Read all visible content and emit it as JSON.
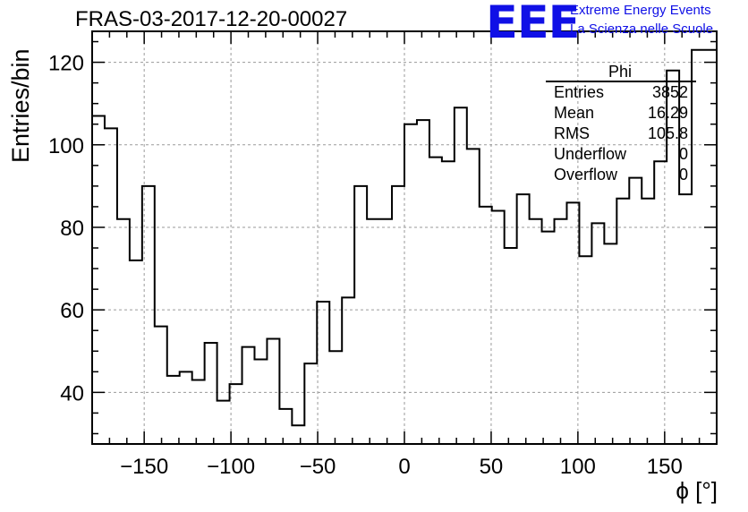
{
  "header": {
    "title": "FRAS-03-2017-12-20-00027"
  },
  "logo": {
    "mark": "EEE",
    "line1": "Extreme Energy Events",
    "line2": "La Scienza nelle Scuole",
    "color": "#1010e6"
  },
  "stats_box": {
    "title": "Phi",
    "rows": [
      {
        "key": "Entries",
        "value": "3852"
      },
      {
        "key": "Mean",
        "value": "16.29"
      },
      {
        "key": "RMS",
        "value": "105.8"
      },
      {
        "key": "Underflow",
        "value": "0"
      },
      {
        "key": "Overflow",
        "value": "0"
      }
    ]
  },
  "chart_data": {
    "type": "histogram",
    "xlabel": "ϕ [°]",
    "ylabel": "Entries/bin",
    "xlim": [
      -180,
      180
    ],
    "ylim": [
      27.5,
      127.5
    ],
    "bin_width": 7.2,
    "bin_start": -180,
    "values": [
      107,
      104,
      82,
      72,
      90,
      56,
      44,
      45,
      43,
      52,
      38,
      42,
      51,
      48,
      53,
      36,
      32,
      47,
      62,
      50,
      63,
      90,
      82,
      82,
      90,
      105,
      106,
      97,
      96,
      109,
      99,
      85,
      84,
      75,
      88,
      82,
      79,
      82,
      86,
      73,
      81,
      76,
      87,
      92,
      87,
      96,
      118,
      88,
      123,
      123
    ],
    "xticks": [
      -150,
      -100,
      -50,
      0,
      50,
      100,
      150
    ],
    "xtick_labels": [
      "−150",
      "−100",
      "−50",
      "0",
      "50",
      "100",
      "150"
    ],
    "yticks": [
      40,
      60,
      80,
      100,
      120
    ],
    "ytick_labels": [
      "40",
      "60",
      "80",
      "100",
      "120"
    ],
    "grid": true,
    "line_color": "#000000"
  }
}
